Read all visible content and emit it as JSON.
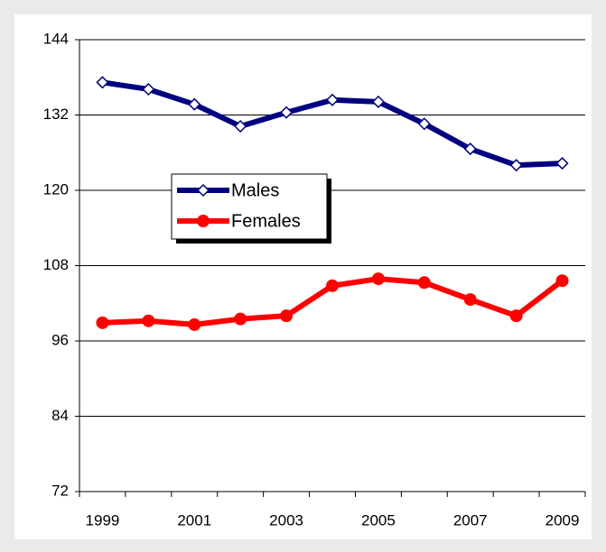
{
  "chart_data": {
    "type": "line",
    "categories": [
      "1999",
      null,
      "2001",
      null,
      "2003",
      null,
      "2005",
      null,
      "2007",
      null,
      "2009"
    ],
    "series": [
      {
        "name": "Males",
        "color": "#000080",
        "marker": "diamond",
        "values": [
          137.2,
          136.1,
          133.7,
          130.2,
          132.4,
          134.4,
          134.1,
          130.6,
          126.6,
          124.0,
          124.3
        ]
      },
      {
        "name": "Females",
        "color": "#ff0000",
        "marker": "circle",
        "values": [
          98.9,
          99.2,
          98.6,
          99.5,
          100.0,
          104.8,
          105.9,
          105.3,
          102.6,
          100.0,
          105.6
        ]
      }
    ],
    "ylim": [
      72,
      144
    ],
    "yticks": [
      72,
      84,
      96,
      108,
      120,
      132,
      144
    ],
    "grid": true,
    "legend": "upper left"
  }
}
